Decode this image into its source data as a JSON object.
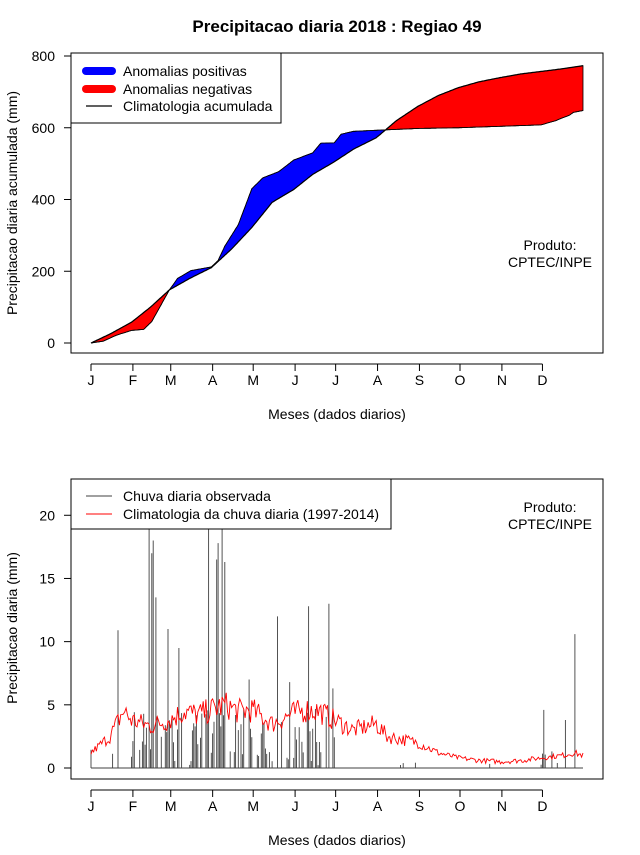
{
  "title": "Precipitacao diaria 2018 : Regiao 49",
  "month_labels": [
    "J",
    "F",
    "M",
    "A",
    "M",
    "J",
    "J",
    "A",
    "S",
    "O",
    "N",
    "D"
  ],
  "chart_data": [
    {
      "type": "area",
      "ylabel": "Precipitacao diaria acumulada (mm)",
      "xlabel": "Meses (dados diarios)",
      "ylim": [
        0,
        800
      ],
      "yticks": [
        "0",
        "200",
        "400",
        "600",
        "800"
      ],
      "legend": {
        "placement": "top-left",
        "positive": "Anomalias positivas",
        "negative": "Anomalias negativas",
        "climatology": "Climatologia acumulada"
      },
      "producer": [
        "Produto:",
        "CPTEC/INPE"
      ],
      "colors": {
        "positive": "#0000ff",
        "negative": "#ff0000",
        "line": "#000000"
      },
      "climatology": {
        "days": [
          1,
          15,
          31,
          45,
          59,
          74,
          90,
          105,
          120,
          135,
          151,
          165,
          181,
          195,
          212,
          227,
          243,
          258,
          273,
          288,
          304,
          319,
          334,
          349,
          365
        ],
        "values": [
          0,
          25,
          58,
          100,
          148,
          180,
          210,
          262,
          322,
          392,
          428,
          470,
          505,
          540,
          572,
          620,
          660,
          690,
          712,
          728,
          740,
          750,
          757,
          764,
          773
        ]
      },
      "observed": {
        "days": [
          1,
          10,
          20,
          31,
          40,
          46,
          59,
          65,
          75,
          90,
          95,
          100,
          105,
          110,
          120,
          128,
          140,
          151,
          165,
          171,
          181,
          186,
          195,
          212,
          243,
          273,
          304,
          334,
          345,
          350,
          355,
          358,
          365
        ],
        "values": [
          0,
          5,
          22,
          35,
          38,
          60,
          148,
          180,
          202,
          212,
          230,
          270,
          300,
          330,
          430,
          460,
          478,
          510,
          530,
          557,
          558,
          582,
          590,
          593,
          598,
          600,
          604,
          608,
          620,
          628,
          635,
          643,
          648
        ]
      }
    },
    {
      "type": "bar",
      "ylabel": "Precipitacao diaria (mm)",
      "xlabel": "Meses (dados diarios)",
      "ylim": [
        0,
        22
      ],
      "yticks": [
        "0",
        "5",
        "10",
        "15",
        "20"
      ],
      "legend": {
        "placement": "top-left",
        "observed": "Chuva diaria observada",
        "climatology": "Climatologia da chuva diaria (1997-2014)"
      },
      "producer": [
        "Produto:",
        "CPTEC/INPE"
      ],
      "colors": {
        "bars": "#404040",
        "line": "#ff0000"
      },
      "observed_peaks": [
        {
          "day": 21,
          "value": 10.9
        },
        {
          "day": 44,
          "value": 20.0
        },
        {
          "day": 46,
          "value": 17.0
        },
        {
          "day": 47,
          "value": 18.0
        },
        {
          "day": 49,
          "value": 13.5
        },
        {
          "day": 58,
          "value": 11.0
        },
        {
          "day": 66,
          "value": 9.5
        },
        {
          "day": 88,
          "value": 20.0
        },
        {
          "day": 94,
          "value": 16.5
        },
        {
          "day": 95,
          "value": 17.8
        },
        {
          "day": 98,
          "value": 20.0
        },
        {
          "day": 100,
          "value": 16.3
        },
        {
          "day": 118,
          "value": 7.0
        },
        {
          "day": 139,
          "value": 12.0
        },
        {
          "day": 148,
          "value": 6.8
        },
        {
          "day": 162,
          "value": 12.8
        },
        {
          "day": 177,
          "value": 13.0
        },
        {
          "day": 180,
          "value": 6.3
        },
        {
          "day": 336,
          "value": 4.6
        },
        {
          "day": 352,
          "value": 3.8
        },
        {
          "day": 359,
          "value": 10.6
        }
      ],
      "climatology": {
        "days": [
          1,
          15,
          25,
          31,
          45,
          59,
          70,
          80,
          90,
          100,
          110,
          120,
          135,
          150,
          160,
          170,
          181,
          195,
          212,
          220,
          243,
          258,
          273,
          288,
          304,
          320,
          334,
          350,
          358,
          365
        ],
        "values": [
          1.2,
          2.5,
          4.5,
          3.8,
          3.3,
          3.8,
          4.5,
          4.2,
          4.6,
          5.0,
          4.5,
          4.6,
          3.5,
          4.3,
          4.6,
          4.5,
          3.8,
          3.0,
          3.5,
          2.5,
          2.0,
          1.2,
          0.8,
          0.6,
          0.5,
          0.6,
          0.8,
          1.0,
          1.2,
          1.0
        ]
      }
    }
  ]
}
